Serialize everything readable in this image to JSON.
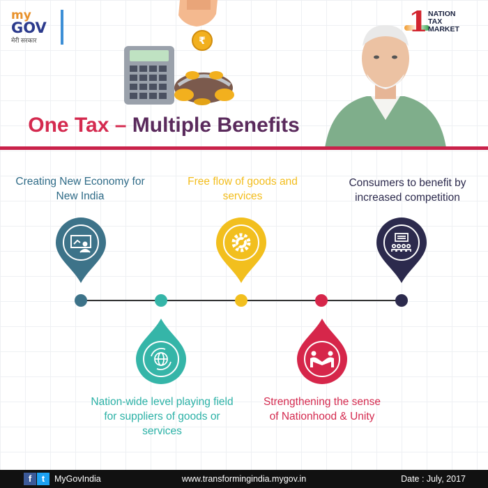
{
  "header": {
    "logo": {
      "my": "my",
      "gov": "GOV",
      "tagline": "मेरी सरकार"
    },
    "gst_logo": {
      "numeral": "1",
      "line1": "NATION",
      "line2": "TAX",
      "line3": "MARKET"
    },
    "title_part1": "One Tax – ",
    "title_part2": "Multiple Benefits"
  },
  "benefits": [
    {
      "text": "Creating New Economy for New India",
      "icon": "presentation-icon",
      "color": "#3d7389"
    },
    {
      "text": "Nation-wide level playing field for suppliers of goods or services",
      "icon": "globe-icon",
      "color": "#35b5a8"
    },
    {
      "text": "Free flow of goods and services",
      "icon": "gear-icon",
      "color": "#f2bf1e"
    },
    {
      "text": "Strengthening the sense of Nationhood & Unity",
      "icon": "handshake-icon",
      "color": "#d6264a"
    },
    {
      "text": "Consumers to benefit by increased competition",
      "icon": "audience-icon",
      "color": "#2c2a4d"
    }
  ],
  "footer": {
    "facebook_glyph": "f",
    "twitter_glyph": "t",
    "handle": "MyGovIndia",
    "url": "www.transformingindia.mygov.in",
    "date": "Date : July, 2017"
  }
}
